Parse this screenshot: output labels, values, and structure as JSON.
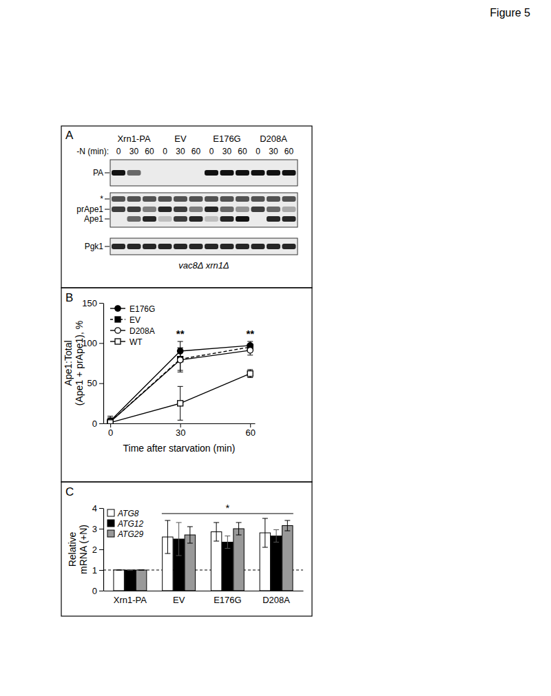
{
  "figure_title": "Figure 5",
  "blot": {
    "panel_label": "A",
    "time_label": "-N (min):",
    "groups": [
      {
        "name": "Xrn1-PA",
        "times": [
          0,
          30,
          60
        ]
      },
      {
        "name": "EV",
        "times": [
          0,
          30,
          60
        ]
      },
      {
        "name": "E176G",
        "times": [
          0,
          30,
          60
        ]
      },
      {
        "name": "D208A",
        "times": [
          0,
          30,
          60
        ]
      }
    ],
    "rows": [
      {
        "label": "PA",
        "intensity": [
          1,
          0.6,
          0,
          0,
          0,
          0,
          1,
          1,
          1,
          1,
          1,
          1
        ]
      },
      {
        "label": "*",
        "intensity": [
          0.7,
          0.7,
          0.7,
          0.7,
          0.7,
          0.7,
          0.7,
          0.7,
          0.7,
          0.7,
          0.7,
          0.7
        ]
      },
      {
        "label": "prApe1",
        "intensity": [
          0.8,
          0.8,
          0.5,
          0.9,
          0.8,
          0.5,
          0.9,
          0.6,
          0.4,
          0.8,
          0.6,
          0.3
        ]
      },
      {
        "label": "Ape1",
        "intensity": [
          0,
          0.6,
          0.9,
          0.2,
          0.8,
          0.9,
          0.2,
          0.9,
          1,
          0,
          0.9,
          0.9
        ]
      },
      {
        "label": "Pgk1",
        "intensity": [
          0.9,
          0.9,
          0.9,
          0.9,
          0.9,
          0.9,
          0.9,
          0.9,
          0.9,
          0.9,
          0.9,
          0.9
        ]
      }
    ],
    "strain": "vac8Δ xrn1Δ"
  },
  "chart_data": [
    {
      "panel_label": "B",
      "type": "line",
      "x_label": "Time after starvation (min)",
      "y_label": [
        "Ape1:Total",
        "(Ape1 + prApe1), %"
      ],
      "x": [
        0,
        30,
        60
      ],
      "xlim": [
        -3,
        62
      ],
      "xticks": [
        0,
        30,
        60
      ],
      "ylim": [
        0,
        150
      ],
      "yticks": [
        0,
        50,
        100,
        150
      ],
      "grid": false,
      "legend": "upper left",
      "series": [
        {
          "name": "E176G",
          "color": "#000000",
          "marker": "circle",
          "line_style": "solid",
          "values": [
            3,
            90,
            97
          ],
          "errors": [
            6,
            12,
            5
          ]
        },
        {
          "name": "EV",
          "color": "#000000",
          "marker": "square",
          "line_style": "dashed",
          "values": [
            2,
            80,
            95
          ],
          "errors": [
            5,
            14,
            4
          ]
        },
        {
          "name": "D208A",
          "color": "#000000",
          "marker": "open-circle",
          "line_style": "solid",
          "values": [
            2,
            79,
            91
          ],
          "errors": [
            4,
            15,
            6
          ]
        },
        {
          "name": "WT",
          "color": "#000000",
          "marker": "open-square",
          "line_style": "solid",
          "values": [
            1,
            25,
            62
          ],
          "errors": [
            3,
            21,
            5
          ]
        }
      ],
      "annotations": [
        {
          "x": 30,
          "text": "**"
        },
        {
          "x": 60,
          "text": "**"
        }
      ]
    },
    {
      "panel_label": "C",
      "type": "bar",
      "categories": [
        "Xrn1-PA",
        "EV",
        "E176G",
        "D208A"
      ],
      "y_label": [
        "Relative",
        "mRNA (+N)"
      ],
      "ylim": [
        0,
        4
      ],
      "yticks": [
        0,
        1,
        2,
        3,
        4
      ],
      "grid": false,
      "legend": "upper left",
      "reference_line": 1,
      "series": [
        {
          "name": "ATG8",
          "color": "#ffffff",
          "values": [
            1,
            2.6,
            2.85,
            2.8
          ],
          "errors": [
            0,
            0.8,
            0.45,
            0.7
          ]
        },
        {
          "name": "ATG12",
          "color": "#000000",
          "values": [
            1,
            2.5,
            2.35,
            2.65
          ],
          "errors": [
            0,
            0.8,
            0.3,
            0.3
          ]
        },
        {
          "name": "ATG29",
          "color": "#999999",
          "values": [
            1,
            2.7,
            3.0,
            3.15
          ],
          "errors": [
            0,
            0.4,
            0.3,
            0.25
          ]
        }
      ],
      "annotations": [
        {
          "text": "*",
          "from": "EV",
          "to": "D208A"
        }
      ]
    }
  ]
}
